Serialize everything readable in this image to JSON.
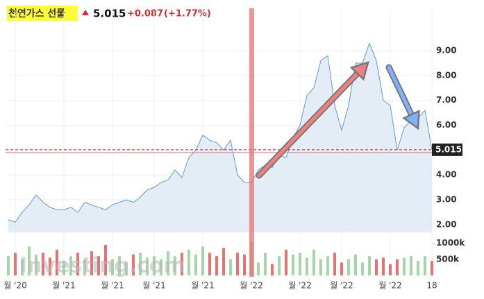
{
  "chart_data": {
    "type": "area",
    "title": "천연가스 선물",
    "last_price": 5.015,
    "change": "+0.087",
    "change_pct": "(+1.77%)",
    "watermark": "Investing.com",
    "color": "#5b9bd5",
    "categories": [
      null,
      "월 '20",
      null,
      null,
      null,
      null,
      null,
      null,
      "월 '21",
      null,
      null,
      null,
      null,
      null,
      null,
      "월 '21",
      null,
      null,
      null,
      null,
      null,
      "월 '21",
      null,
      null,
      null,
      null,
      null,
      null,
      "월 '21",
      null,
      null,
      null,
      null,
      null,
      null,
      "월 '22",
      null,
      null,
      null,
      null,
      null,
      null,
      "월 '22",
      null,
      null,
      null,
      null,
      null,
      "월 '22",
      null,
      null,
      null,
      null,
      null,
      null,
      "월 '22",
      null,
      null,
      null,
      null,
      null,
      "18"
    ],
    "values": [
      2.2,
      2.1,
      2.5,
      2.8,
      3.2,
      2.9,
      2.7,
      2.6,
      2.6,
      2.7,
      2.5,
      2.9,
      2.8,
      2.7,
      2.6,
      2.8,
      2.9,
      3.0,
      2.9,
      3.1,
      3.4,
      3.5,
      3.7,
      3.8,
      4.2,
      3.9,
      4.7,
      5.0,
      5.6,
      5.4,
      5.3,
      5.0,
      5.4,
      4.0,
      3.7,
      3.7,
      4.2,
      4.4,
      4.3,
      4.8,
      4.7,
      5.5,
      6.0,
      7.2,
      7.5,
      8.6,
      8.8,
      6.8,
      5.8,
      6.8,
      8.5,
      8.5,
      9.3,
      8.6,
      7.0,
      6.8,
      5.0,
      5.9,
      6.2,
      6.3,
      6.6,
      5.015
    ],
    "ylim": [
      1.69,
      10.62
    ],
    "yticks": [
      {
        "value": 2,
        "label": "2.00"
      },
      {
        "value": 3,
        "label": "3.00"
      },
      {
        "value": 4,
        "label": "4.00"
      },
      {
        "value": 5,
        "label": "5.00"
      },
      {
        "value": 6,
        "label": "6.00"
      },
      {
        "value": 7,
        "label": "7.00"
      },
      {
        "value": 8,
        "label": "8.00"
      },
      {
        "value": 9,
        "label": "9.00"
      }
    ],
    "volume": {
      "values": [
        600000,
        700000,
        500000,
        900000,
        650000,
        700000,
        550000,
        800000,
        450000,
        600000,
        700000,
        500000,
        750000,
        600000,
        950000,
        500000,
        600000,
        400000,
        650000,
        700000,
        550000,
        600000,
        500000,
        750000,
        600000,
        700000,
        800000,
        650000,
        900000,
        700000,
        600000,
        850000,
        500000,
        700000,
        650000,
        1050000,
        400000,
        700000,
        350000,
        600000,
        800000,
        650000,
        700000,
        550000,
        800000,
        500000,
        600000,
        700000,
        400000,
        500000,
        650000,
        400000,
        600000,
        500000,
        550000,
        350000,
        500000,
        550000,
        600000,
        450000,
        600000,
        450000
      ],
      "ylim": [
        0,
        1100000
      ],
      "yticks": [
        {
          "value": 1000000,
          "label": "1000k"
        },
        {
          "value": 500000,
          "label": "500k"
        }
      ],
      "up_color": "#a5d6a7",
      "down_color": "#e57373"
    }
  }
}
